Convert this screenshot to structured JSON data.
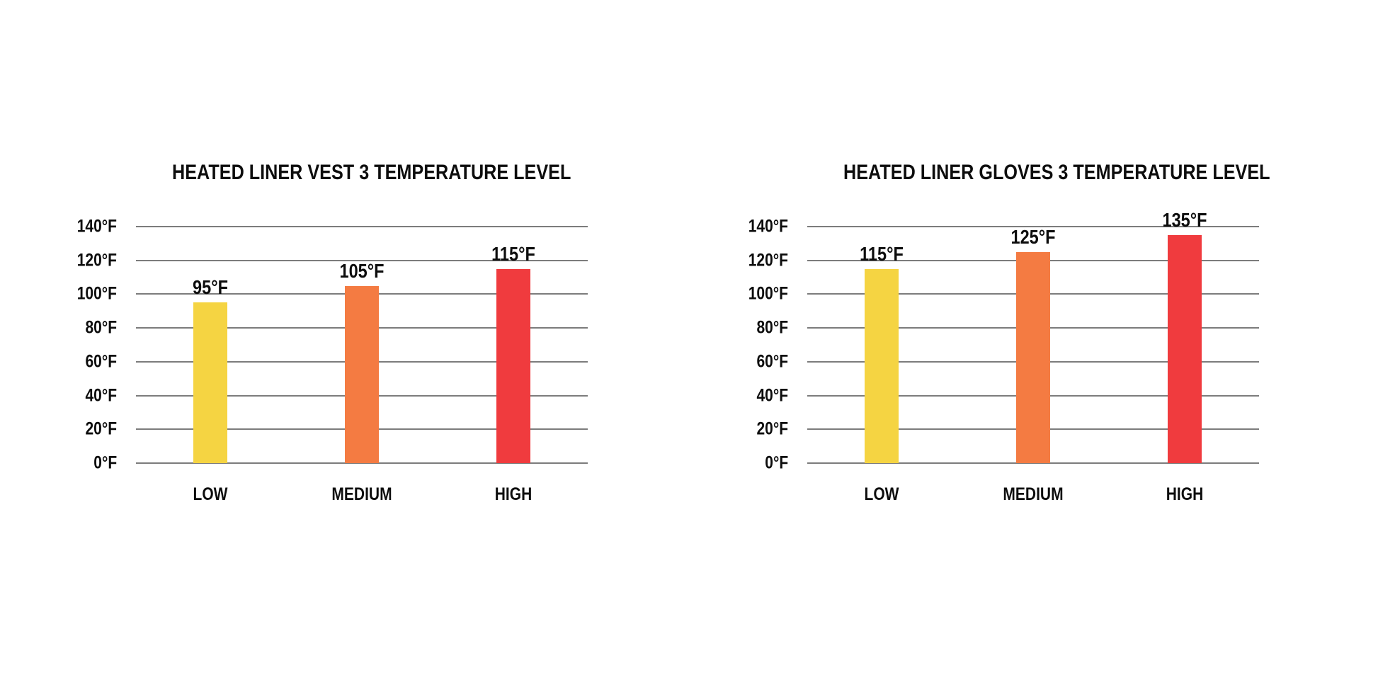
{
  "page": {
    "background_color": "#ffffff",
    "text_color": "#0d0d0d",
    "gridline_color": "#7c7c7c"
  },
  "chart_data": [
    {
      "type": "bar",
      "title": "HEATED LINER VEST 3 TEMPERATURE LEVEL",
      "categories": [
        "LOW",
        "MEDIUM",
        "HIGH"
      ],
      "values": [
        95,
        105,
        115
      ],
      "value_labels": [
        "95°F",
        "105°F",
        "115°F"
      ],
      "bar_colors": [
        "#F5D442",
        "#F47B42",
        "#F03B3E"
      ],
      "yticks": [
        140,
        120,
        100,
        80,
        60,
        40,
        20,
        0
      ],
      "ytick_labels": [
        "140°F",
        "120°F",
        "100°F",
        "80°F",
        "60°F",
        "40°F",
        "20°F",
        "0°F"
      ],
      "ylabel": "",
      "xlabel": "",
      "ylim": [
        0,
        140
      ],
      "grid": true,
      "legend": false
    },
    {
      "type": "bar",
      "title": "HEATED LINER GLOVES 3 TEMPERATURE LEVEL",
      "categories": [
        "LOW",
        "MEDIUM",
        "HIGH"
      ],
      "values": [
        115,
        125,
        135
      ],
      "value_labels": [
        "115°F",
        "125°F",
        "135°F"
      ],
      "bar_colors": [
        "#F5D442",
        "#F47B42",
        "#F03B3E"
      ],
      "yticks": [
        140,
        120,
        100,
        80,
        60,
        40,
        20,
        0
      ],
      "ytick_labels": [
        "140°F",
        "120°F",
        "100°F",
        "80°F",
        "60°F",
        "40°F",
        "20°F",
        "0°F"
      ],
      "ylabel": "",
      "xlabel": "",
      "ylim": [
        0,
        140
      ],
      "grid": true,
      "legend": false
    }
  ]
}
